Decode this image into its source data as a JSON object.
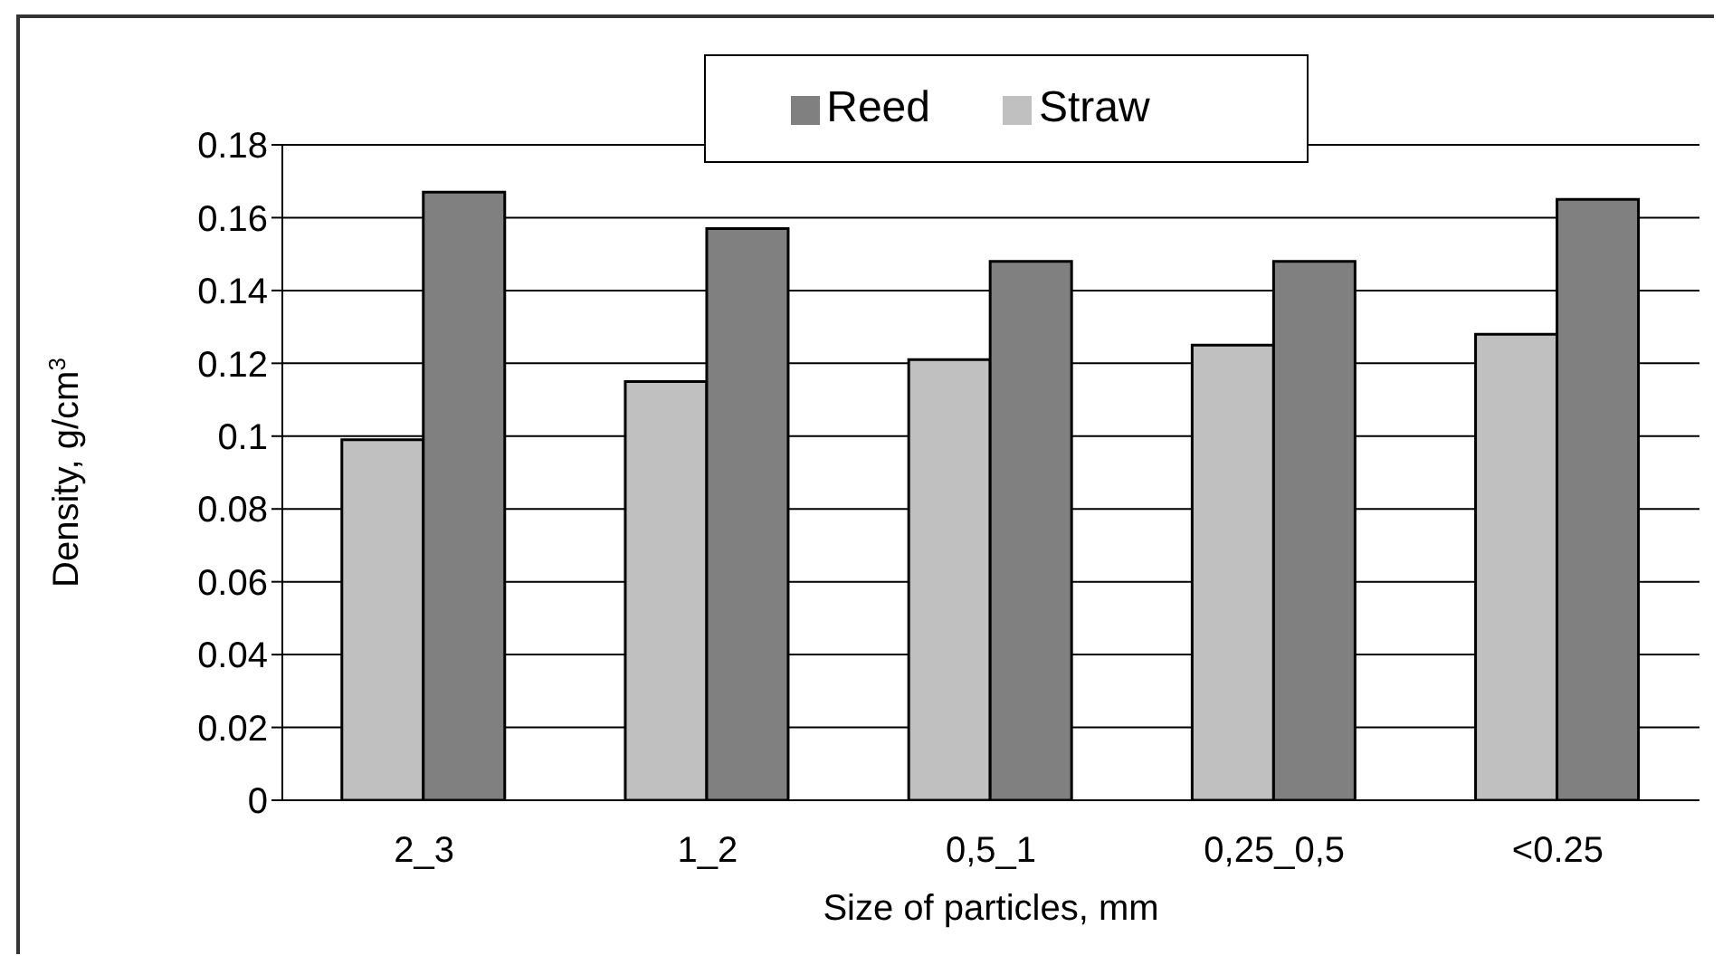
{
  "chart_data": {
    "type": "bar",
    "xlabel": "Size of particles, mm",
    "ylabel": "Density, g/cm$^{3}$",
    "categories": [
      "2_3",
      "1_2",
      "0,5_1",
      "0,25_0,5",
      "<0.25"
    ],
    "series": [
      {
        "name": "Straw",
        "color": "#c0c0c0",
        "values": [
          0.099,
          0.115,
          0.121,
          0.125,
          0.128
        ]
      },
      {
        "name": "Reed",
        "color": "#808080",
        "values": [
          0.167,
          0.157,
          0.148,
          0.148,
          0.165
        ]
      }
    ],
    "ylim": [
      0,
      0.18
    ],
    "yticks": [
      0,
      0.02,
      0.04,
      0.06,
      0.08,
      0.1,
      0.12,
      0.14,
      0.16,
      0.18
    ],
    "grid": "y",
    "legend": "top"
  }
}
